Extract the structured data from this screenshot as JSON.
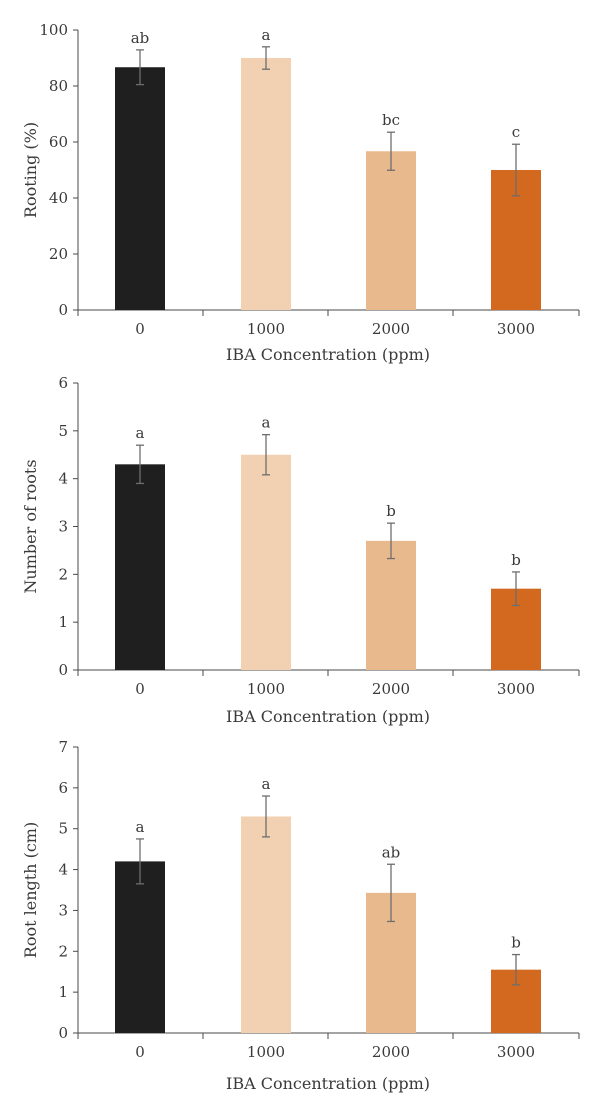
{
  "chart_data": [
    {
      "type": "bar",
      "categories": [
        "0",
        "1000",
        "2000",
        "3000"
      ],
      "values": [
        86.7,
        90.0,
        56.7,
        50.0
      ],
      "errors": [
        6.2,
        4.0,
        6.8,
        9.2
      ],
      "significance": [
        "ab",
        "a",
        "bc",
        "c"
      ],
      "colors": [
        "#1f1f1f",
        "#f2d1b3",
        "#e8b98c",
        "#d2691e"
      ],
      "xlabel": "IBA Concentration (ppm)",
      "ylabel": "Rooting (%)",
      "ylim": [
        0,
        100
      ],
      "yticks": [
        "0",
        "20",
        "40",
        "60",
        "80",
        "100"
      ]
    },
    {
      "type": "bar",
      "categories": [
        "0",
        "1000",
        "2000",
        "3000"
      ],
      "values": [
        4.3,
        4.5,
        2.7,
        1.7
      ],
      "errors": [
        0.4,
        0.42,
        0.37,
        0.35
      ],
      "significance": [
        "a",
        "a",
        "b",
        "b"
      ],
      "colors": [
        "#1f1f1f",
        "#f2d1b3",
        "#e8b98c",
        "#d2691e"
      ],
      "xlabel": "IBA Concentration (ppm)",
      "ylabel": "Number of roots",
      "ylim": [
        0,
        6
      ],
      "yticks": [
        "0",
        "1",
        "2",
        "3",
        "4",
        "5",
        "6"
      ]
    },
    {
      "type": "bar",
      "categories": [
        "0",
        "1000",
        "2000",
        "3000"
      ],
      "values": [
        4.2,
        5.3,
        3.43,
        1.55
      ],
      "errors": [
        0.55,
        0.5,
        0.7,
        0.37
      ],
      "significance": [
        "a",
        "a",
        "ab",
        "b"
      ],
      "colors": [
        "#1f1f1f",
        "#f2d1b3",
        "#e8b98c",
        "#d2691e"
      ],
      "xlabel": "IBA Concentration (ppm)",
      "ylabel": "Root length (cm)",
      "ylim": [
        0,
        7
      ],
      "yticks": [
        "0",
        "1",
        "2",
        "3",
        "4",
        "5",
        "6",
        "7"
      ]
    }
  ]
}
